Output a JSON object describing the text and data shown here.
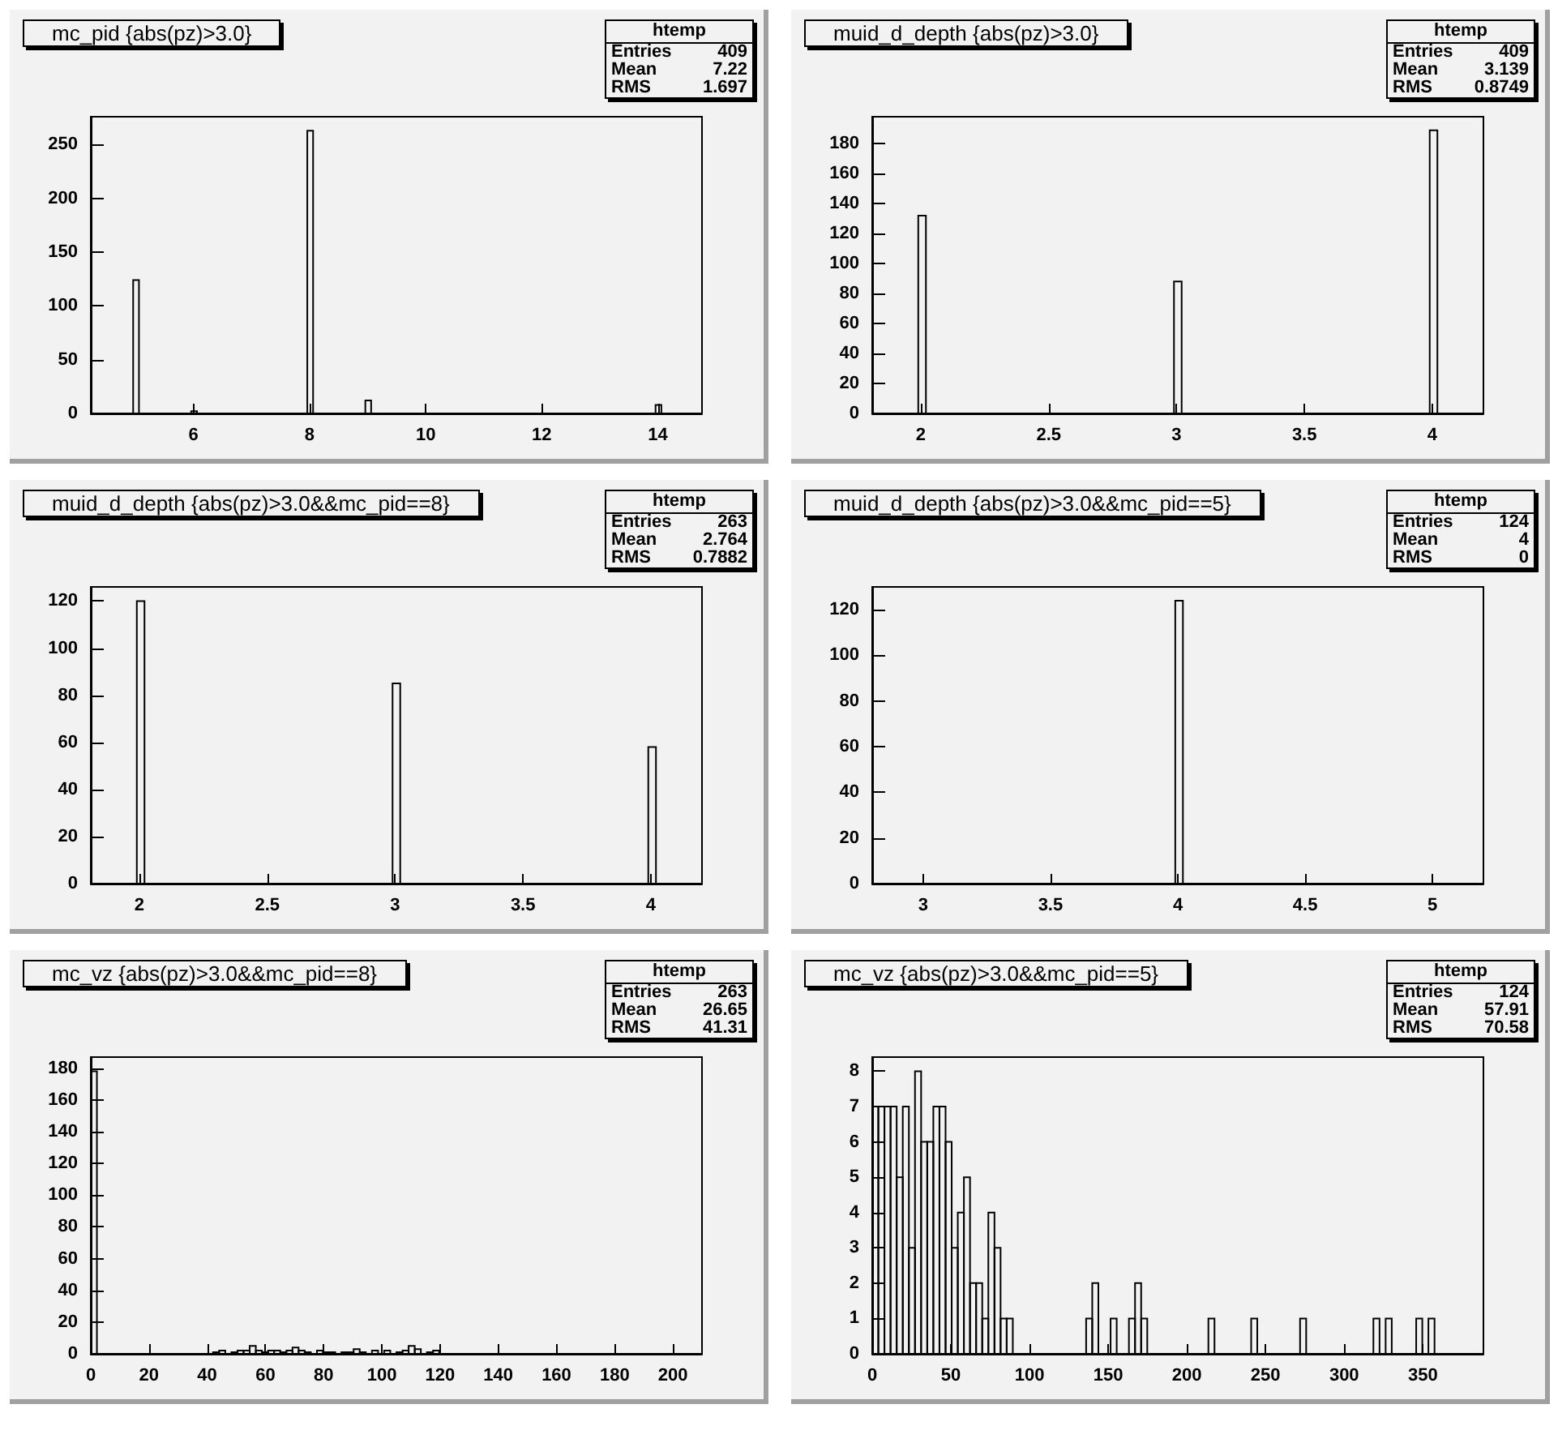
{
  "chart_data": [
    {
      "type": "histogram",
      "title": "mc_pid {abs(pz)>3.0}",
      "color": "#000000",
      "bins": [
        4.23,
        4.96,
        5.06,
        5.96,
        6.06,
        7.96,
        8.06,
        8.96,
        9.06,
        13.96,
        14.06,
        14.76
      ],
      "values": [
        0,
        124,
        0,
        2,
        0,
        263,
        0,
        12,
        0,
        8,
        0
      ],
      "xlim": [
        4.23,
        14.76
      ],
      "xticks": [
        6,
        8,
        10,
        12,
        14
      ],
      "ylim": [
        0,
        276
      ],
      "yticks": [
        0,
        50,
        100,
        150,
        200,
        250
      ],
      "annotations": [
        "htemp",
        "Entries",
        "409",
        "Mean",
        "7.22",
        "RMS",
        "1.697"
      ]
    },
    {
      "type": "histogram",
      "title": "muid_d_depth {abs(pz)>3.0}",
      "color": "#000000",
      "bins": [
        1.81,
        1.99,
        2.02,
        2.99,
        3.02,
        3.99,
        4.02,
        4.2
      ],
      "values": [
        0,
        132,
        0,
        88,
        0,
        189,
        0
      ],
      "xlim": [
        1.81,
        4.2
      ],
      "xticks": [
        2,
        2.5,
        3,
        3.5,
        4
      ],
      "ylim": [
        0,
        198
      ],
      "yticks": [
        0,
        20,
        40,
        60,
        80,
        100,
        120,
        140,
        160,
        180
      ],
      "annotations": [
        "htemp",
        "Entries",
        "409",
        "Mean",
        "3.139",
        "RMS",
        "0.8749"
      ]
    },
    {
      "type": "histogram",
      "title": "muid_d_depth {abs(pz)>3.0&&mc_pid==8}",
      "color": "#000000",
      "bins": [
        1.81,
        1.99,
        2.02,
        2.99,
        3.02,
        3.99,
        4.02,
        4.2
      ],
      "values": [
        0,
        120,
        0,
        85,
        0,
        58,
        0
      ],
      "xlim": [
        1.81,
        4.2
      ],
      "xticks": [
        2,
        2.5,
        3,
        3.5,
        4
      ],
      "ylim": [
        0,
        126
      ],
      "yticks": [
        0,
        20,
        40,
        60,
        80,
        100,
        120
      ],
      "annotations": [
        "htemp",
        "Entries",
        "263",
        "Mean",
        "2.764",
        "RMS",
        "0.7882"
      ]
    },
    {
      "type": "histogram",
      "title": "muid_d_depth {abs(pz)>3.0&&mc_pid==5}",
      "color": "#000000",
      "bins": [
        2.8,
        3.99,
        4.02,
        5.2
      ],
      "values": [
        0,
        124,
        0
      ],
      "xlim": [
        2.8,
        5.2
      ],
      "xticks": [
        3,
        3.5,
        4,
        4.5,
        5
      ],
      "ylim": [
        0,
        130
      ],
      "yticks": [
        0,
        20,
        40,
        60,
        80,
        100,
        120
      ],
      "annotations": [
        "htemp",
        "Entries",
        "124",
        "Mean",
        "4",
        "RMS",
        "0"
      ]
    },
    {
      "type": "histogram",
      "title": "mc_vz {abs(pz)>3.0&&mc_pid==8}",
      "color": "#000000",
      "bins": [
        0,
        2.1,
        42,
        44.1,
        46.2,
        48.3,
        50.4,
        52.5,
        54.6,
        56.7,
        58.8,
        60.9,
        63,
        65.1,
        67.2,
        69.3,
        71.4,
        73.5,
        75.6,
        77.7,
        79.8,
        81.9,
        84,
        86.1,
        88.2,
        90.3,
        92.4,
        94.5,
        96.6,
        98.7,
        100.8,
        102.9,
        105,
        107.1,
        109.2,
        111.3,
        113.4,
        115.5,
        117.6,
        119.7,
        210
      ],
      "values": [
        178,
        0,
        1,
        2,
        0,
        1,
        2,
        2,
        5,
        2,
        1,
        2,
        2,
        1,
        2,
        4,
        2,
        1,
        0,
        2,
        1,
        1,
        0,
        1,
        1,
        3,
        1,
        0,
        2,
        0,
        2,
        0,
        1,
        2,
        5,
        3,
        0,
        1,
        2,
        0
      ],
      "xlim": [
        0,
        210
      ],
      "xticks": [
        0,
        20,
        40,
        60,
        80,
        100,
        120,
        140,
        160,
        180,
        200
      ],
      "ylim": [
        0,
        187
      ],
      "yticks": [
        0,
        20,
        40,
        60,
        80,
        100,
        120,
        140,
        160,
        180
      ],
      "annotations": [
        "htemp",
        "Entries",
        "263",
        "Mean",
        "26.65",
        "RMS",
        "41.31"
      ]
    },
    {
      "type": "histogram",
      "title": "mc_vz {abs(pz)>3.0&&mc_pid==5}",
      "color": "#000000",
      "bins": [
        0,
        3.885,
        7.77,
        11.655,
        15.54,
        19.425,
        23.31,
        27.195,
        31.08,
        34.965,
        38.85,
        42.735,
        46.62,
        50.505,
        54.39,
        58.275,
        62.16,
        66.045,
        69.93,
        73.815,
        77.7,
        81.585,
        85.47,
        89.355,
        135.975,
        139.86,
        143.745,
        147.63,
        151.515,
        155.4,
        159.285,
        163.17,
        167.055,
        170.94,
        174.825,
        213.675,
        217.56,
        240.87,
        244.755,
        271.95,
        275.835,
        318.57,
        322.455,
        326.34,
        330.225,
        345.765,
        349.65,
        353.535,
        357.42,
        388.5
      ],
      "values": [
        7,
        7,
        7,
        7,
        5,
        7,
        3,
        8,
        6,
        6,
        7,
        7,
        6,
        3,
        4,
        5,
        2,
        2,
        1,
        4,
        3,
        1,
        1,
        0,
        1,
        2,
        0,
        0,
        1,
        0,
        0,
        1,
        2,
        1,
        0,
        1,
        0,
        1,
        0,
        1,
        0,
        1,
        0,
        1,
        0,
        1,
        0,
        1,
        0
      ],
      "xlim": [
        0,
        388.5
      ],
      "xticks": [
        0,
        50,
        100,
        150,
        200,
        250,
        300,
        350
      ],
      "ylim": [
        0,
        8.4
      ],
      "yticks": [
        0,
        1,
        2,
        3,
        4,
        5,
        6,
        7,
        8
      ],
      "annotations": [
        "htemp",
        "Entries",
        "124",
        "Mean",
        "57.91",
        "RMS",
        "70.58"
      ]
    }
  ]
}
